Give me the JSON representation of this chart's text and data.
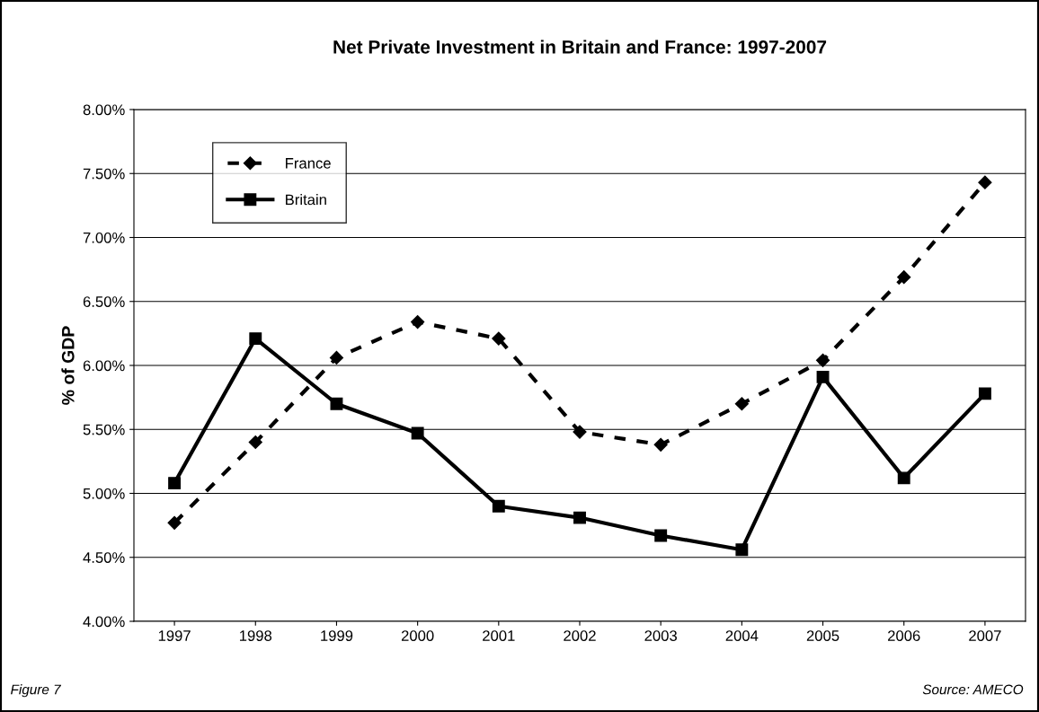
{
  "chart_data": {
    "type": "line",
    "title": "Net Private Investment in Britain and France: 1997-2007",
    "ylabel": "% of GDP",
    "categories": [
      "1997",
      "1998",
      "1999",
      "2000",
      "2001",
      "2002",
      "2003",
      "2004",
      "2005",
      "2006",
      "2007"
    ],
    "series": [
      {
        "name": "France",
        "color": "#000000",
        "line_style": "dashed",
        "marker": "diamond",
        "values": [
          4.77,
          5.4,
          6.06,
          6.34,
          6.21,
          5.48,
          5.38,
          5.7,
          6.04,
          6.69,
          7.43
        ]
      },
      {
        "name": "Britain",
        "color": "#000000",
        "line_style": "solid",
        "marker": "square",
        "values": [
          5.08,
          6.21,
          5.7,
          5.47,
          4.9,
          4.81,
          4.67,
          4.56,
          5.91,
          5.12,
          5.78
        ]
      }
    ],
    "ylim": [
      4.0,
      8.0
    ],
    "yticks": [
      {
        "value": 4.0,
        "label": "4.00%"
      },
      {
        "value": 4.5,
        "label": "4.50%"
      },
      {
        "value": 5.0,
        "label": "5.00%"
      },
      {
        "value": 5.5,
        "label": "5.50%"
      },
      {
        "value": 6.0,
        "label": "6.00%"
      },
      {
        "value": 6.5,
        "label": "6.50%"
      },
      {
        "value": 7.0,
        "label": "7.00%"
      },
      {
        "value": 7.5,
        "label": "7.50%"
      },
      {
        "value": 8.0,
        "label": "8.00%"
      }
    ],
    "grid": "y",
    "legend": "top left",
    "annotations": [
      "Figure 7",
      "Source: AMECO"
    ]
  }
}
